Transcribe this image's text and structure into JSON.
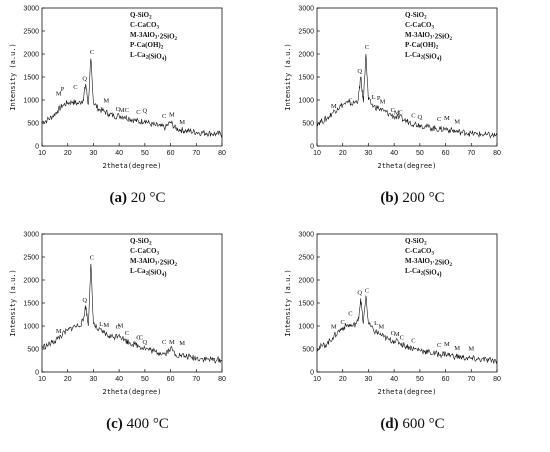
{
  "chart_data": [
    {
      "type": "line",
      "caption_letter": "(a)",
      "caption_temp": "20 °C",
      "xlabel": "2theta(degree)",
      "ylabel": "Intensity (a.u.)",
      "xlim": [
        10,
        80
      ],
      "ylim": [
        0,
        3000
      ],
      "xticks": [
        "10",
        "20",
        "30",
        "40",
        "50",
        "60",
        "70",
        "80"
      ],
      "yticks": [
        "0",
        "500",
        "1000",
        "1500",
        "2000",
        "2500",
        "3000"
      ],
      "legend": [
        "Q-SiO2",
        "C-CaCO3",
        "M-3AlO3·2SiO2",
        "P-Ca(OH)2",
        "L-Ca2(SiO4)"
      ],
      "x": [
        10,
        12,
        14,
        16,
        18,
        20,
        22,
        24,
        26,
        27,
        28,
        29,
        30,
        32,
        34,
        36,
        38,
        40,
        42,
        44,
        46,
        48,
        50,
        52,
        54,
        56,
        58,
        60,
        62,
        64,
        66,
        68,
        70,
        72,
        74,
        76,
        78,
        80
      ],
      "y": [
        520,
        560,
        640,
        760,
        880,
        940,
        960,
        920,
        1000,
        1350,
        900,
        1900,
        950,
        800,
        760,
        700,
        650,
        660,
        640,
        600,
        560,
        520,
        560,
        480,
        450,
        430,
        400,
        520,
        380,
        350,
        330,
        320,
        300,
        290,
        280,
        270,
        260,
        260
      ],
      "peaks": [
        {
          "label": "M",
          "x": 16.5,
          "y": 1050
        },
        {
          "label": "P",
          "x": 18,
          "y": 1150
        },
        {
          "label": "C",
          "x": 23,
          "y": 1200
        },
        {
          "label": "Q",
          "x": 26.6,
          "y": 1380
        },
        {
          "label": "C",
          "x": 29.4,
          "y": 1960
        },
        {
          "label": "M",
          "x": 35,
          "y": 900
        },
        {
          "label": "C",
          "x": 39.5,
          "y": 720
        },
        {
          "label": "M",
          "x": 41,
          "y": 700
        },
        {
          "label": "C",
          "x": 43,
          "y": 700
        },
        {
          "label": "C",
          "x": 47.5,
          "y": 650
        },
        {
          "label": "Q",
          "x": 50,
          "y": 690
        },
        {
          "label": "C",
          "x": 57.5,
          "y": 560
        },
        {
          "label": "M",
          "x": 60.5,
          "y": 600
        },
        {
          "label": "M",
          "x": 64.5,
          "y": 430
        }
      ]
    },
    {
      "type": "line",
      "caption_letter": "(b)",
      "caption_temp": "200 °C",
      "xlabel": "2theta(degree)",
      "ylabel": "Intensity (a.u.)",
      "xlim": [
        10,
        80
      ],
      "ylim": [
        0,
        3000
      ],
      "xticks": [
        "10",
        "20",
        "30",
        "40",
        "50",
        "60",
        "70",
        "80"
      ],
      "yticks": [
        "0",
        "500",
        "1000",
        "1500",
        "2000",
        "2500",
        "3000"
      ],
      "legend": [
        "Q-SiO2",
        "C-CaCO3",
        "M-3AlO3·2SiO2",
        "P-Ca(OH)2",
        "L-Ca2(SiO4)"
      ],
      "x": [
        10,
        12,
        14,
        16,
        18,
        20,
        22,
        24,
        26,
        27,
        28,
        29,
        30,
        32,
        34,
        36,
        38,
        40,
        42,
        44,
        46,
        48,
        50,
        52,
        54,
        56,
        58,
        60,
        62,
        64,
        66,
        68,
        70,
        72,
        74,
        76,
        78,
        80
      ],
      "y": [
        500,
        540,
        600,
        720,
        820,
        900,
        940,
        920,
        1000,
        1500,
        950,
        2000,
        1000,
        860,
        820,
        760,
        700,
        640,
        620,
        560,
        520,
        480,
        460,
        430,
        400,
        380,
        360,
        380,
        340,
        320,
        300,
        290,
        270,
        260,
        250,
        240,
        230,
        230
      ],
      "peaks": [
        {
          "label": "M",
          "x": 16.5,
          "y": 780
        },
        {
          "label": "C",
          "x": 23,
          "y": 900
        },
        {
          "label": "Q",
          "x": 26.6,
          "y": 1540
        },
        {
          "label": "C",
          "x": 29.4,
          "y": 2060
        },
        {
          "label": "L",
          "x": 32,
          "y": 980
        },
        {
          "label": "P",
          "x": 34,
          "y": 960
        },
        {
          "label": "M",
          "x": 35.5,
          "y": 880
        },
        {
          "label": "C",
          "x": 39.5,
          "y": 700
        },
        {
          "label": "M",
          "x": 41,
          "y": 640
        },
        {
          "label": "C",
          "x": 42.5,
          "y": 640
        },
        {
          "label": "C",
          "x": 47.5,
          "y": 580
        },
        {
          "label": "Q",
          "x": 50,
          "y": 540
        },
        {
          "label": "C",
          "x": 57.5,
          "y": 500
        },
        {
          "label": "M",
          "x": 60.5,
          "y": 520
        },
        {
          "label": "M",
          "x": 64.5,
          "y": 450
        }
      ]
    },
    {
      "type": "line",
      "caption_letter": "(c)",
      "caption_temp": "400 °C",
      "xlabel": "2theta(degree)",
      "ylabel": "Intensity (a.u.)",
      "xlim": [
        10,
        80
      ],
      "ylim": [
        0,
        3000
      ],
      "xticks": [
        "10",
        "20",
        "30",
        "40",
        "50",
        "60",
        "70",
        "80"
      ],
      "yticks": [
        "0",
        "500",
        "1000",
        "1500",
        "2000",
        "2500",
        "3000"
      ],
      "legend": [
        "Q-SiO2",
        "C-CaCO3",
        "M-3AlO3·2SiO2",
        "L-Ca2(SiO4)"
      ],
      "x": [
        10,
        12,
        14,
        16,
        18,
        20,
        22,
        24,
        26,
        27,
        28,
        29,
        30,
        32,
        34,
        36,
        38,
        40,
        42,
        44,
        46,
        48,
        50,
        52,
        54,
        56,
        58,
        60,
        62,
        64,
        66,
        68,
        70,
        72,
        74,
        76,
        78,
        80
      ],
      "y": [
        540,
        580,
        640,
        720,
        820,
        900,
        980,
        1000,
        1100,
        1450,
        1000,
        2350,
        1050,
        900,
        860,
        780,
        760,
        820,
        700,
        640,
        600,
        560,
        520,
        480,
        440,
        420,
        400,
        520,
        380,
        360,
        340,
        320,
        300,
        290,
        280,
        270,
        260,
        260
      ],
      "peaks": [
        {
          "label": "M",
          "x": 16.5,
          "y": 800
        },
        {
          "label": "Q",
          "x": 26.6,
          "y": 1480
        },
        {
          "label": "C",
          "x": 29.4,
          "y": 2400
        },
        {
          "label": "L",
          "x": 33,
          "y": 960
        },
        {
          "label": "M",
          "x": 35,
          "y": 930
        },
        {
          "label": "C",
          "x": 39.5,
          "y": 890
        },
        {
          "label": "M",
          "x": 40.5,
          "y": 920
        },
        {
          "label": "C",
          "x": 43,
          "y": 760
        },
        {
          "label": "C",
          "x": 47.5,
          "y": 660
        },
        {
          "label": "C",
          "x": 48.5,
          "y": 660
        },
        {
          "label": "Q",
          "x": 50,
          "y": 560
        },
        {
          "label": "C",
          "x": 57.5,
          "y": 560
        },
        {
          "label": "M",
          "x": 60.5,
          "y": 560
        },
        {
          "label": "M",
          "x": 64.5,
          "y": 540
        }
      ]
    },
    {
      "type": "line",
      "caption_letter": "(d)",
      "caption_temp": "600 °C",
      "xlabel": "2theta(degree)",
      "ylabel": "Intensity (a.u.)",
      "xlim": [
        10,
        80
      ],
      "ylim": [
        0,
        3000
      ],
      "xticks": [
        "10",
        "20",
        "30",
        "40",
        "50",
        "60",
        "70",
        "80"
      ],
      "yticks": [
        "0",
        "500",
        "1000",
        "1500",
        "2000",
        "2500",
        "3000"
      ],
      "legend": [
        "Q-SiO2",
        "C-CaCO3",
        "M-3AlO3·2SiO2",
        "L-Ca2(SiO4)"
      ],
      "x": [
        10,
        12,
        14,
        16,
        18,
        20,
        22,
        24,
        26,
        27,
        28,
        29,
        30,
        32,
        34,
        36,
        38,
        40,
        42,
        44,
        46,
        48,
        50,
        52,
        54,
        56,
        58,
        60,
        62,
        64,
        66,
        68,
        70,
        72,
        74,
        76,
        78,
        80
      ],
      "y": [
        520,
        560,
        620,
        740,
        860,
        960,
        1020,
        1000,
        1100,
        1600,
        1050,
        1650,
        1050,
        900,
        840,
        760,
        700,
        680,
        640,
        580,
        540,
        500,
        480,
        450,
        420,
        400,
        380,
        400,
        360,
        340,
        320,
        300,
        290,
        280,
        270,
        260,
        250,
        250
      ],
      "peaks": [
        {
          "label": "M",
          "x": 16.5,
          "y": 900
        },
        {
          "label": "C",
          "x": 20,
          "y": 1000
        },
        {
          "label": "C",
          "x": 23,
          "y": 1180
        },
        {
          "label": "Q",
          "x": 26.6,
          "y": 1640
        },
        {
          "label": "C",
          "x": 29.4,
          "y": 1690
        },
        {
          "label": "L",
          "x": 33,
          "y": 980
        },
        {
          "label": "M",
          "x": 35,
          "y": 900
        },
        {
          "label": "C",
          "x": 39.5,
          "y": 760
        },
        {
          "label": "M",
          "x": 41,
          "y": 740
        },
        {
          "label": "C",
          "x": 43,
          "y": 660
        },
        {
          "label": "C",
          "x": 47.5,
          "y": 600
        },
        {
          "label": "C",
          "x": 57.5,
          "y": 500
        },
        {
          "label": "M",
          "x": 60.5,
          "y": 520
        },
        {
          "label": "M",
          "x": 64.5,
          "y": 440
        },
        {
          "label": "M",
          "x": 70,
          "y": 420
        }
      ]
    }
  ]
}
